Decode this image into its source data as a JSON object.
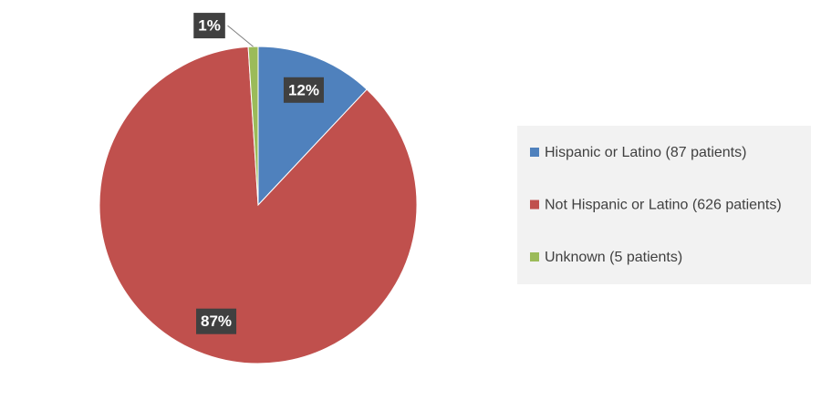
{
  "chart_data": {
    "type": "pie",
    "categories": [
      "Hispanic or Latino (87 patients)",
      "Not Hispanic or Latino (626 patients)",
      "Unknown (5 patients)"
    ],
    "values": [
      12,
      87,
      1
    ],
    "value_labels": [
      "12%",
      "87%",
      "1%"
    ],
    "colors": [
      "#4f81bd",
      "#c0504d",
      "#9bbb59"
    ],
    "legend": "right"
  }
}
